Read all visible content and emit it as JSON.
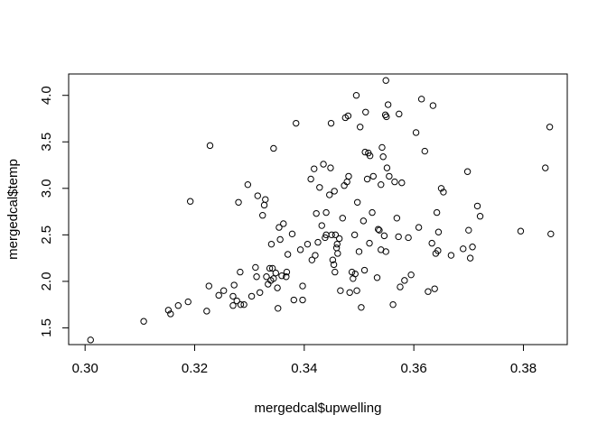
{
  "chart_data": {
    "type": "scatter",
    "title": "",
    "xlabel": "mergedcal$upwelling",
    "ylabel": "mergedcal$temp",
    "xlim": [
      0.297,
      0.388
    ],
    "ylim": [
      1.32,
      4.23
    ],
    "x_ticks": [
      {
        "value": 0.3,
        "label": "0.30"
      },
      {
        "value": 0.32,
        "label": "0.32"
      },
      {
        "value": 0.34,
        "label": "0.34"
      },
      {
        "value": 0.36,
        "label": "0.36"
      },
      {
        "value": 0.38,
        "label": "0.38"
      }
    ],
    "y_ticks": [
      {
        "value": 1.5,
        "label": "1.5"
      },
      {
        "value": 2.0,
        "label": "2.0"
      },
      {
        "value": 2.5,
        "label": "2.5"
      },
      {
        "value": 3.0,
        "label": "3.0"
      },
      {
        "value": 3.5,
        "label": "3.5"
      },
      {
        "value": 4.0,
        "label": "4.0"
      }
    ],
    "grid": false,
    "legend": "none",
    "marker": "open-circle",
    "points": [
      [
        0.301,
        1.37
      ],
      [
        0.3107,
        1.57
      ],
      [
        0.3152,
        1.69
      ],
      [
        0.3156,
        1.65
      ],
      [
        0.317,
        1.74
      ],
      [
        0.3188,
        1.78
      ],
      [
        0.3192,
        2.86
      ],
      [
        0.3222,
        1.68
      ],
      [
        0.3226,
        1.95
      ],
      [
        0.3228,
        3.46
      ],
      [
        0.3244,
        1.85
      ],
      [
        0.3253,
        1.9
      ],
      [
        0.327,
        1.74
      ],
      [
        0.327,
        1.84
      ],
      [
        0.3272,
        1.96
      ],
      [
        0.3277,
        1.79
      ],
      [
        0.328,
        2.85
      ],
      [
        0.3283,
        2.1
      ],
      [
        0.3284,
        1.75
      ],
      [
        0.329,
        1.75
      ],
      [
        0.3297,
        3.04
      ],
      [
        0.3304,
        1.84
      ],
      [
        0.3311,
        2.15
      ],
      [
        0.3313,
        2.05
      ],
      [
        0.3315,
        2.92
      ],
      [
        0.3319,
        1.88
      ],
      [
        0.3324,
        2.71
      ],
      [
        0.3327,
        2.82
      ],
      [
        0.3329,
        2.88
      ],
      [
        0.3331,
        2.05
      ],
      [
        0.3334,
        1.97
      ],
      [
        0.3337,
        2.14
      ],
      [
        0.3339,
        2.01
      ],
      [
        0.334,
        2.4
      ],
      [
        0.3342,
        2.14
      ],
      [
        0.3344,
        2.03
      ],
      [
        0.3344,
        3.43
      ],
      [
        0.3348,
        2.09
      ],
      [
        0.3351,
        1.93
      ],
      [
        0.3352,
        1.71
      ],
      [
        0.3354,
        2.58
      ],
      [
        0.3356,
        2.45
      ],
      [
        0.3359,
        2.06
      ],
      [
        0.3362,
        2.62
      ],
      [
        0.3367,
        2.05
      ],
      [
        0.3368,
        2.1
      ],
      [
        0.337,
        2.29
      ],
      [
        0.3378,
        2.51
      ],
      [
        0.3381,
        1.8
      ],
      [
        0.3385,
        3.7
      ],
      [
        0.3393,
        2.34
      ],
      [
        0.3397,
        1.95
      ],
      [
        0.3397,
        1.8
      ],
      [
        0.3406,
        2.4
      ],
      [
        0.3412,
        3.1
      ],
      [
        0.3414,
        2.23
      ],
      [
        0.3418,
        3.21
      ],
      [
        0.342,
        2.28
      ],
      [
        0.3422,
        2.73
      ],
      [
        0.3425,
        2.42
      ],
      [
        0.3428,
        3.01
      ],
      [
        0.3432,
        2.6
      ],
      [
        0.3435,
        3.26
      ],
      [
        0.3438,
        2.47
      ],
      [
        0.344,
        2.74
      ],
      [
        0.344,
        2.5
      ],
      [
        0.3446,
        2.93
      ],
      [
        0.3448,
        3.22
      ],
      [
        0.3449,
        3.7
      ],
      [
        0.345,
        2.5
      ],
      [
        0.3452,
        2.23
      ],
      [
        0.3454,
        2.18
      ],
      [
        0.3455,
        2.97
      ],
      [
        0.3456,
        2.1
      ],
      [
        0.3457,
        2.5
      ],
      [
        0.3459,
        2.36
      ],
      [
        0.346,
        2.4
      ],
      [
        0.3461,
        2.3
      ],
      [
        0.3464,
        2.46
      ],
      [
        0.3466,
        1.9
      ],
      [
        0.347,
        2.68
      ],
      [
        0.3473,
        3.03
      ],
      [
        0.3475,
        3.76
      ],
      [
        0.3478,
        3.07
      ],
      [
        0.348,
        3.78
      ],
      [
        0.3481,
        3.13
      ],
      [
        0.3483,
        1.88
      ],
      [
        0.3487,
        2.1
      ],
      [
        0.3489,
        2.03
      ],
      [
        0.3492,
        2.5
      ],
      [
        0.3493,
        2.08
      ],
      [
        0.3495,
        4.0
      ],
      [
        0.3496,
        1.9
      ],
      [
        0.3497,
        2.85
      ],
      [
        0.35,
        2.32
      ],
      [
        0.3502,
        3.66
      ],
      [
        0.3504,
        1.72
      ],
      [
        0.3508,
        2.65
      ],
      [
        0.351,
        2.12
      ],
      [
        0.3511,
        3.39
      ],
      [
        0.3512,
        3.82
      ],
      [
        0.3515,
        3.1
      ],
      [
        0.3517,
        3.38
      ],
      [
        0.3519,
        2.41
      ],
      [
        0.352,
        3.35
      ],
      [
        0.3524,
        2.74
      ],
      [
        0.3526,
        3.13
      ],
      [
        0.3533,
        2.04
      ],
      [
        0.3535,
        2.56
      ],
      [
        0.3537,
        2.55
      ],
      [
        0.354,
        2.34
      ],
      [
        0.354,
        3.04
      ],
      [
        0.3542,
        3.44
      ],
      [
        0.3544,
        3.34
      ],
      [
        0.3546,
        2.49
      ],
      [
        0.3548,
        3.79
      ],
      [
        0.3549,
        2.32
      ],
      [
        0.3549,
        4.16
      ],
      [
        0.355,
        3.77
      ],
      [
        0.3551,
        3.22
      ],
      [
        0.3553,
        3.9
      ],
      [
        0.3555,
        3.13
      ],
      [
        0.3562,
        1.75
      ],
      [
        0.3565,
        3.07
      ],
      [
        0.3569,
        2.68
      ],
      [
        0.3572,
        2.48
      ],
      [
        0.3573,
        3.8
      ],
      [
        0.3575,
        1.94
      ],
      [
        0.3578,
        3.06
      ],
      [
        0.3583,
        2.01
      ],
      [
        0.359,
        2.47
      ],
      [
        0.3595,
        2.07
      ],
      [
        0.3604,
        3.6
      ],
      [
        0.3609,
        2.58
      ],
      [
        0.3614,
        3.96
      ],
      [
        0.362,
        3.4
      ],
      [
        0.3626,
        1.89
      ],
      [
        0.3633,
        2.41
      ],
      [
        0.3635,
        3.89
      ],
      [
        0.3638,
        1.92
      ],
      [
        0.364,
        2.3
      ],
      [
        0.3642,
        2.74
      ],
      [
        0.3644,
        2.33
      ],
      [
        0.3645,
        2.53
      ],
      [
        0.365,
        3.0
      ],
      [
        0.3654,
        2.96
      ],
      [
        0.3668,
        2.28
      ],
      [
        0.369,
        2.35
      ],
      [
        0.3698,
        3.18
      ],
      [
        0.37,
        2.55
      ],
      [
        0.3703,
        2.25
      ],
      [
        0.3707,
        2.37
      ],
      [
        0.3716,
        2.81
      ],
      [
        0.3721,
        2.7
      ],
      [
        0.3795,
        2.54
      ],
      [
        0.384,
        3.22
      ],
      [
        0.3848,
        3.66
      ],
      [
        0.385,
        2.51
      ]
    ]
  }
}
